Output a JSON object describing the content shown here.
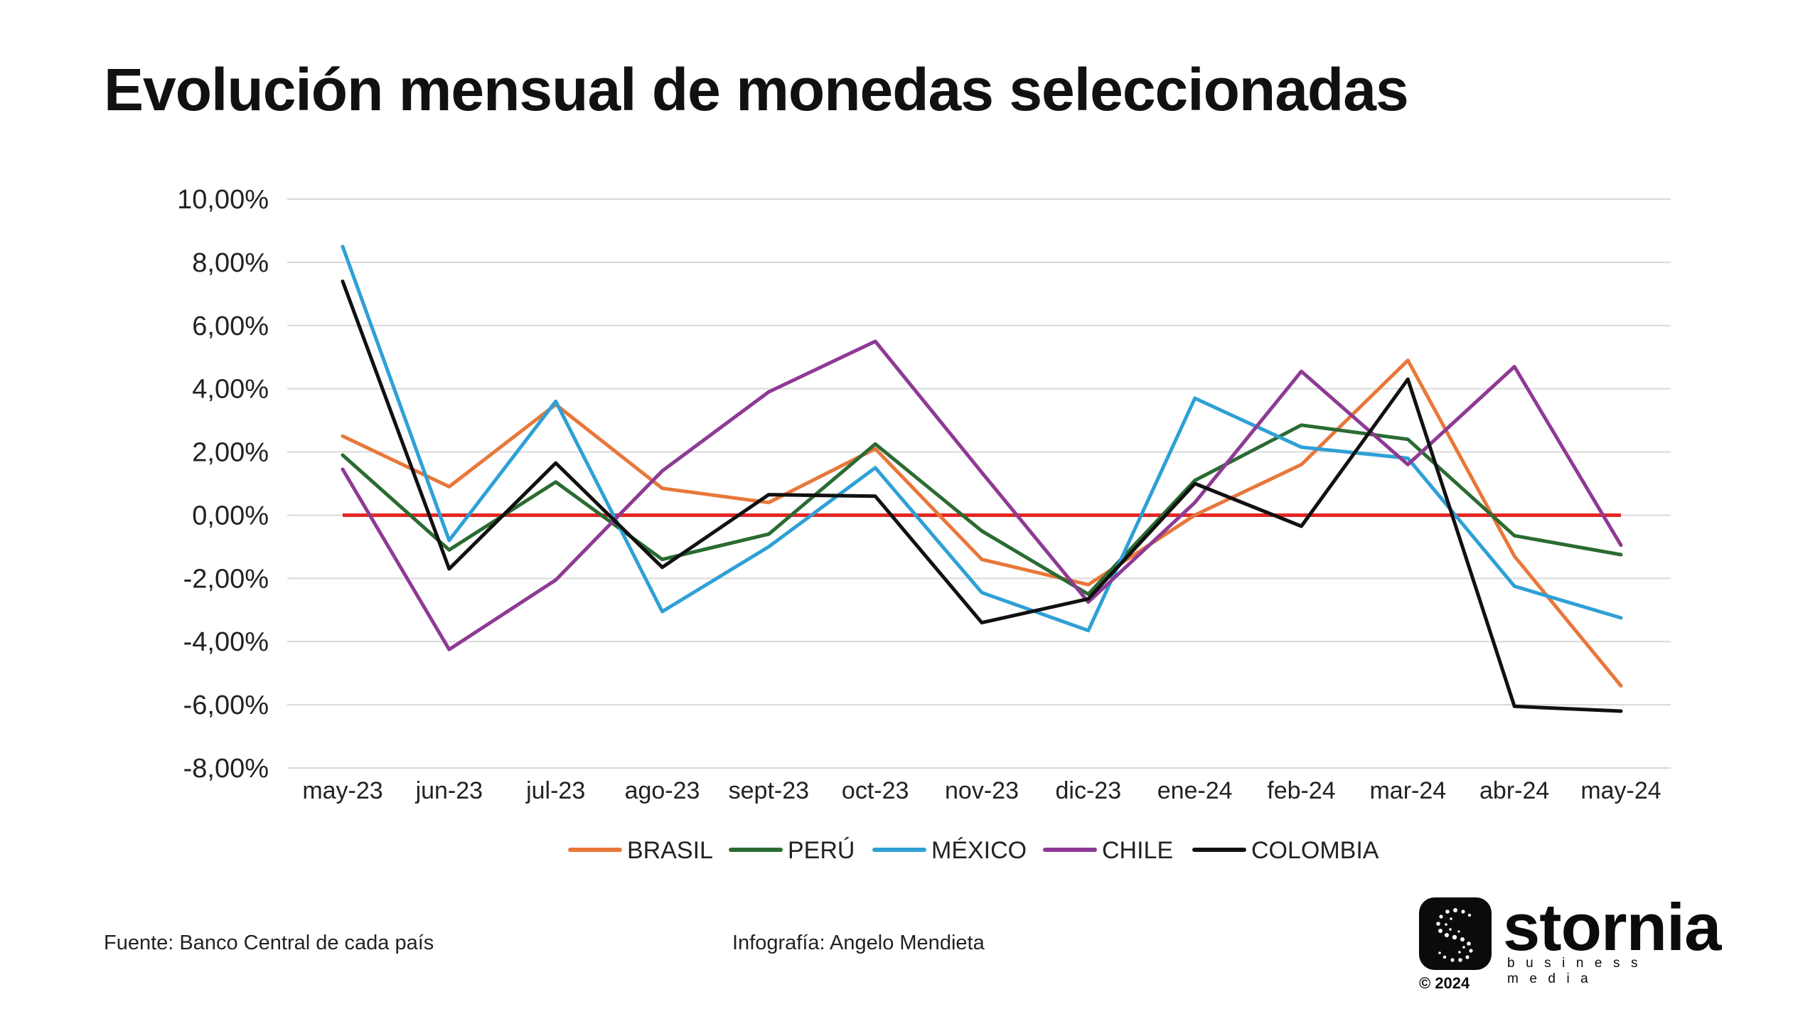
{
  "title": "Evolución mensual de monedas seleccionadas",
  "chart_data": {
    "type": "line",
    "categories": [
      "may-23",
      "jun-23",
      "jul-23",
      "ago-23",
      "sept-23",
      "oct-23",
      "nov-23",
      "dic-23",
      "ene-24",
      "feb-24",
      "mar-24",
      "abr-24",
      "may-24"
    ],
    "ylim": [
      -8,
      10
    ],
    "yticks": [
      10,
      8,
      6,
      4,
      2,
      0,
      -2,
      -4,
      -6,
      -8
    ],
    "ytick_labels": [
      "10,00%",
      "8,00%",
      "6,00%",
      "4,00%",
      "2,00%",
      "0,00%",
      "-2,00%",
      "-4,00%",
      "-6,00%",
      "-8,00%"
    ],
    "grid": true,
    "legend_position": "bottom",
    "reference_line": {
      "value": 0,
      "color": "#e32726"
    },
    "series": [
      {
        "name": "BRASIL",
        "color": "#e8773a",
        "values": [
          2.5,
          0.9,
          3.5,
          0.85,
          0.4,
          2.1,
          -1.4,
          -2.2,
          0.0,
          1.6,
          4.9,
          -1.3,
          -5.4
        ]
      },
      {
        "name": "PERÚ",
        "color": "#2a6b32",
        "values": [
          1.9,
          -1.1,
          1.05,
          -1.4,
          -0.6,
          2.25,
          -0.5,
          -2.5,
          1.1,
          2.85,
          2.4,
          -0.65,
          -1.25
        ]
      },
      {
        "name": "MÉXICO",
        "color": "#2ea0d6",
        "values": [
          8.5,
          -0.8,
          3.6,
          -3.05,
          -1.0,
          1.5,
          -2.45,
          -3.65,
          3.7,
          2.15,
          1.8,
          -2.25,
          -3.25
        ]
      },
      {
        "name": "CHILE",
        "color": "#8e3a94",
        "values": [
          1.45,
          -4.25,
          -2.05,
          1.4,
          3.9,
          5.5,
          1.35,
          -2.75,
          0.4,
          4.55,
          1.6,
          4.7,
          -0.95
        ]
      },
      {
        "name": "COLOMBIA",
        "color": "#111111",
        "values": [
          7.4,
          -1.7,
          1.65,
          -1.65,
          0.65,
          0.6,
          -3.4,
          -2.65,
          1.0,
          -0.35,
          4.3,
          -6.05,
          -6.2
        ]
      }
    ]
  },
  "footer": {
    "source": "Fuente: Banco Central de cada país",
    "credit": "Infografía: Angelo Mendieta"
  },
  "brand": {
    "name": "stornia",
    "subtitle": "business media",
    "year": "© 2024"
  }
}
